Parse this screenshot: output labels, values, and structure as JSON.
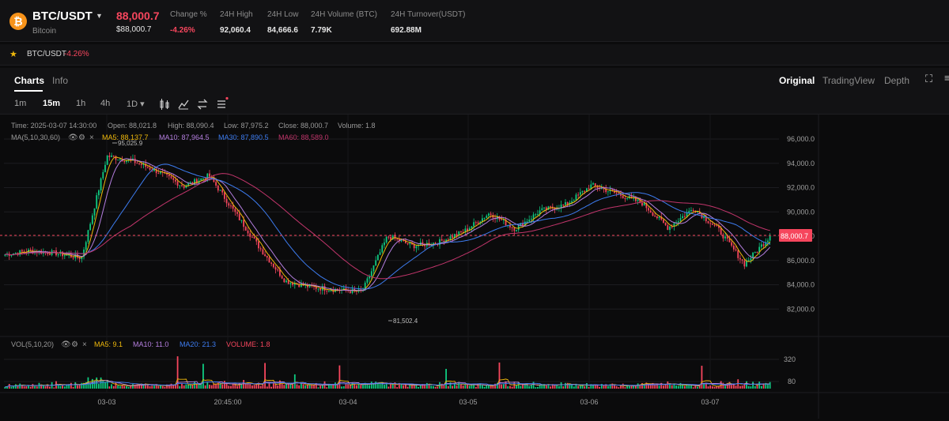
{
  "header": {
    "coin_icon": "bitcoin-logo",
    "pair": "BTC/USDT",
    "pair_sub": "Bitcoin",
    "price": "88,000.7",
    "price_sub": "$88,000.7",
    "stats": [
      {
        "label": "Change %",
        "value": "-4.26%"
      },
      {
        "label": "24H High",
        "value": "92,060.4"
      },
      {
        "label": "24H Low",
        "value": "84,666.6"
      },
      {
        "label": "24H Volume (BTC)",
        "value": "7.79K"
      },
      {
        "label": "24H Turnover(USDT)",
        "value": "692.88M"
      }
    ]
  },
  "ticker": {
    "pair": "BTC/USDT",
    "change": "-4.26%"
  },
  "tabs": {
    "charts": "Charts",
    "info": "Info"
  },
  "views": {
    "original": "Original",
    "tradingview": "TradingView",
    "depth": "Depth"
  },
  "timeframes": [
    "1m",
    "15m",
    "1h",
    "4h",
    "1D ▾"
  ],
  "active_timeframe": "15m",
  "ohlc": {
    "time": "Time: 2025-03-07 14:30:00",
    "open": "Open: 88,021.8",
    "high": "High: 88,090.4",
    "low": "Low: 87,975.2",
    "close": "Close: 88,000.7",
    "volume": "Volume: 1.8"
  },
  "ma_legend": {
    "label": "MA(5,10,30,60)",
    "ma5": "MA5: 88,137.7",
    "ma10": "MA10: 87,964.5",
    "ma30": "MA30: 87,890.5",
    "ma60": "MA60: 88,589.0"
  },
  "vol_legend": {
    "label": "VOL(5,10,20)",
    "ma5": "MA5: 9.1",
    "ma10": "MA10: 11.0",
    "ma20": "MA20: 21.3",
    "volume": "VOLUME: 1.8"
  },
  "annotations": {
    "high": "95,025.9",
    "low": "81,502.4"
  },
  "price_tag": "88,000.7",
  "colors": {
    "up": "#0ecb81",
    "down": "#f6465d",
    "ma5": "#f0b90b",
    "ma10": "#b57fe0",
    "ma30": "#3d7cf0",
    "ma60": "#c2356b"
  },
  "chart_data": {
    "type": "line",
    "title": "",
    "price_axis_ticks": [
      "96,000.0",
      "94,000.0",
      "92,000.0",
      "90,000.0",
      "88,000.0",
      "86,000.0",
      "84,000.0",
      "82,000.0"
    ],
    "volume_axis_ticks": [
      "320",
      "80"
    ],
    "x_tick_labels": [
      "03-03",
      "20:45:00",
      "03-04",
      "03-05",
      "03-06",
      "03-07"
    ],
    "ylim": [
      80000,
      97500
    ],
    "current_price": 88000.7,
    "series": [
      {
        "name": "Close",
        "x": [
          "03-02 18:00",
          "03-02 22:00",
          "03-03 02:00",
          "03-03 06:00",
          "03-03 08:00",
          "03-03 12:00",
          "03-03 16:00",
          "03-03 20:00",
          "03-04 00:00",
          "03-04 02:00",
          "03-04 06:00",
          "03-04 10:00",
          "03-04 14:00",
          "03-04 18:00",
          "03-04 22:00",
          "03-05 02:00",
          "03-05 06:00",
          "03-05 10:00",
          "03-05 14:00",
          "03-05 18:00",
          "03-05 22:00",
          "03-06 02:00",
          "03-06 06:00",
          "03-06 10:00",
          "03-06 14:00",
          "03-06 18:00",
          "03-06 22:00",
          "03-07 02:00",
          "03-07 06:00",
          "03-07 10:00",
          "03-07 14:00"
        ],
        "values": [
          86500,
          86800,
          86600,
          86200,
          94600,
          94200,
          93300,
          92100,
          93000,
          90000,
          87000,
          84300,
          83800,
          83600,
          83400,
          88000,
          87200,
          87500,
          88400,
          89900,
          88600,
          90100,
          90600,
          92200,
          91500,
          90700,
          88700,
          90300,
          88500,
          85700,
          88000
        ]
      }
    ]
  }
}
